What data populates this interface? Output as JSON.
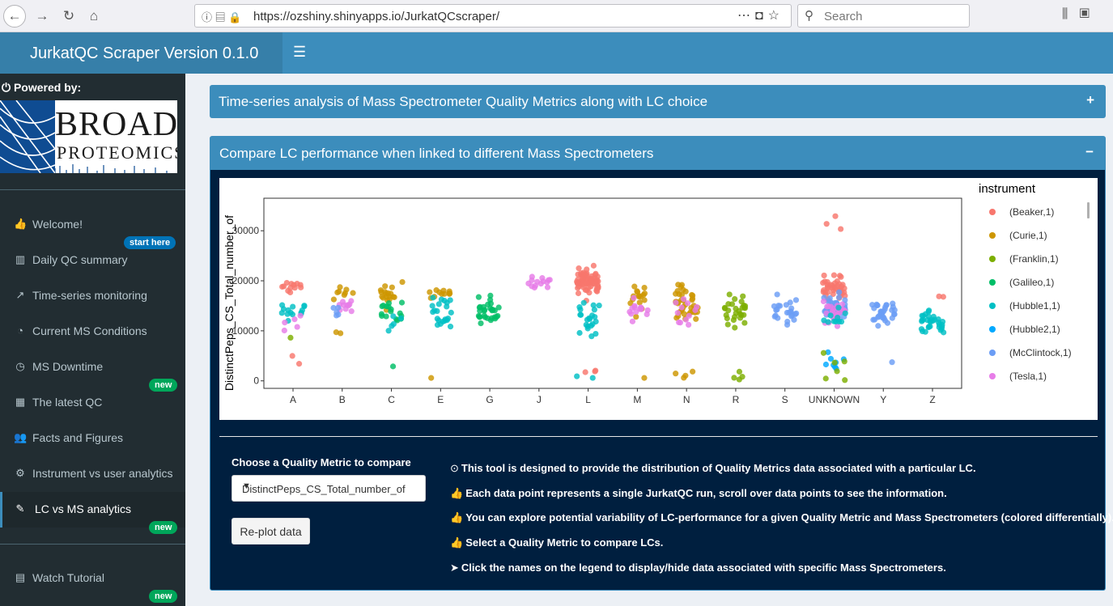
{
  "browser": {
    "url": "https://ozshiny.shinyapps.io/JurkatQCscraper/",
    "search_placeholder": "Search"
  },
  "header": {
    "title": "JurkatQC Scraper Version 0.1.0"
  },
  "sidebar": {
    "powered_by": "Powered by:",
    "logo_text_1": "BROAD",
    "logo_text_2": "PROTEOMICS",
    "items": [
      {
        "label": "Welcome!",
        "icon": "thumbs-up-icon",
        "badge": "start here"
      },
      {
        "label": "Daily QC summary",
        "icon": "bar-chart-icon",
        "badge": ""
      },
      {
        "label": "Time-series monitoring",
        "icon": "line-chart-icon",
        "badge": ""
      },
      {
        "label": "Current MS Conditions",
        "icon": "dashboard-icon",
        "badge": ""
      },
      {
        "label": "MS Downtime",
        "icon": "clock-icon",
        "badge": "new"
      },
      {
        "label": "The latest QC",
        "icon": "table-icon",
        "badge": ""
      },
      {
        "label": "Facts and Figures",
        "icon": "users-icon",
        "badge": ""
      },
      {
        "label": "Instrument vs user analytics",
        "icon": "gears-icon",
        "badge": ""
      },
      {
        "label": "LC vs MS analytics",
        "icon": "eyedropper-icon",
        "badge": "new"
      },
      {
        "label": "Watch Tutorial",
        "icon": "film-icon",
        "badge": "new"
      }
    ]
  },
  "boxes": {
    "collapsed_title": "Time-series analysis of Mass Spectrometer Quality Metrics along with LC choice",
    "collapsed_tool": "+",
    "open_title": "Compare LC performance when linked to different Mass Spectrometers",
    "open_tool": "−"
  },
  "controls": {
    "metric_label": "Choose a Quality Metric to compare",
    "metric_value": "DistinctPeps_CS_Total_number_of",
    "replot_label": "Re-plot data"
  },
  "info": [
    {
      "icon": "circle-dot-icon",
      "glyph": "⊙",
      "text": "This tool is designed to provide the distribution of Quality Metrics data associated with a particular LC."
    },
    {
      "icon": "thumbs-up-icon",
      "glyph": "👍",
      "text": "Each data point represents a single JurkatQC run, scroll over data points to see the information."
    },
    {
      "icon": "thumbs-up-icon",
      "glyph": "👍",
      "text": "You can explore potential variability of LC-performance for a given Quality Metric and Mass Spectrometers (colored differentially)."
    },
    {
      "icon": "thumbs-up-icon",
      "glyph": "👍",
      "text": "Select a Quality Metric to compare LCs."
    },
    {
      "icon": "pointer-icon",
      "glyph": "➤",
      "text": "Click the names on the legend to display/hide data associated with specific Mass Spectrometers."
    }
  ],
  "chart_data": {
    "type": "scatter",
    "title": "",
    "xlabel": "",
    "ylabel": "DistinctPeps_CS_Total_number_of",
    "categories": [
      "A",
      "B",
      "C",
      "E",
      "G",
      "J",
      "L",
      "M",
      "N",
      "R",
      "S",
      "UNKNOWN",
      "Y",
      "Z"
    ],
    "y_tick_labels": [
      "0",
      "10000",
      "20000",
      "30000"
    ],
    "y_ticks": [
      0,
      10000,
      20000,
      30000
    ],
    "ylim": [
      -1500,
      36500
    ],
    "legend_title": "instrument",
    "legend_position": "right",
    "series": [
      {
        "name": "(Beaker,1)",
        "color": "#f8766d"
      },
      {
        "name": "(Curie,1)",
        "color": "#cd9600"
      },
      {
        "name": "(Franklin,1)",
        "color": "#7cae00"
      },
      {
        "name": "(Galileo,1)",
        "color": "#00be67"
      },
      {
        "name": "(Hubble1,1)",
        "color": "#00bfc4"
      },
      {
        "name": "(Hubble2,1)",
        "color": "#00a9ff"
      },
      {
        "name": "(McClintock,1)",
        "color": "#6b9df5"
      },
      {
        "name": "(Tesla,1)",
        "color": "#e77de8"
      }
    ],
    "groups": [
      {
        "category": "A",
        "clusters": [
          {
            "s": 0,
            "mean": 18500,
            "sd": 900,
            "n": 12
          },
          {
            "s": 4,
            "mean": 13800,
            "sd": 1100,
            "n": 14
          },
          {
            "s": 7,
            "mean": 11500,
            "sd": 1200,
            "n": 5
          },
          {
            "s": 2,
            "mean": 8700,
            "sd": 300,
            "n": 1
          },
          {
            "s": 0,
            "mean": 5000,
            "sd": 600,
            "n": 2
          }
        ]
      },
      {
        "category": "B",
        "clusters": [
          {
            "s": 1,
            "mean": 17500,
            "sd": 900,
            "n": 8
          },
          {
            "s": 7,
            "mean": 14700,
            "sd": 800,
            "n": 10
          },
          {
            "s": 6,
            "mean": 14000,
            "sd": 700,
            "n": 5
          },
          {
            "s": 1,
            "mean": 9500,
            "sd": 200,
            "n": 2
          }
        ]
      },
      {
        "category": "C",
        "clusters": [
          {
            "s": 1,
            "mean": 17000,
            "sd": 1200,
            "n": 18
          },
          {
            "s": 3,
            "mean": 14000,
            "sd": 1300,
            "n": 16
          },
          {
            "s": 4,
            "mean": 11500,
            "sd": 1000,
            "n": 5
          },
          {
            "s": 3,
            "mean": 3000,
            "sd": 100,
            "n": 1
          }
        ]
      },
      {
        "category": "E",
        "clusters": [
          {
            "s": 1,
            "mean": 17500,
            "sd": 800,
            "n": 12
          },
          {
            "s": 4,
            "mean": 13000,
            "sd": 2000,
            "n": 22
          },
          {
            "s": 1,
            "mean": 500,
            "sd": 100,
            "n": 1
          }
        ]
      },
      {
        "category": "G",
        "clusters": [
          {
            "s": 3,
            "mean": 14200,
            "sd": 1200,
            "n": 30
          }
        ]
      },
      {
        "category": "J",
        "clusters": [
          {
            "s": 7,
            "mean": 19800,
            "sd": 600,
            "n": 14
          }
        ]
      },
      {
        "category": "L",
        "clusters": [
          {
            "s": 0,
            "mean": 19800,
            "sd": 1300,
            "n": 70
          },
          {
            "s": 4,
            "mean": 13000,
            "sd": 2000,
            "n": 22
          },
          {
            "s": 0,
            "mean": 2000,
            "sd": 300,
            "n": 3
          },
          {
            "s": 4,
            "mean": 700,
            "sd": 300,
            "n": 2
          }
        ]
      },
      {
        "category": "M",
        "clusters": [
          {
            "s": 1,
            "mean": 16000,
            "sd": 1400,
            "n": 16
          },
          {
            "s": 7,
            "mean": 14500,
            "sd": 1000,
            "n": 14
          },
          {
            "s": 1,
            "mean": 500,
            "sd": 100,
            "n": 1
          }
        ]
      },
      {
        "category": "N",
        "clusters": [
          {
            "s": 1,
            "mean": 15500,
            "sd": 2200,
            "n": 40
          },
          {
            "s": 7,
            "mean": 14000,
            "sd": 1500,
            "n": 12
          },
          {
            "s": 1,
            "mean": 1000,
            "sd": 400,
            "n": 4
          }
        ]
      },
      {
        "category": "R",
        "clusters": [
          {
            "s": 2,
            "mean": 14000,
            "sd": 1800,
            "n": 28
          },
          {
            "s": 2,
            "mean": 700,
            "sd": 600,
            "n": 4
          }
        ]
      },
      {
        "category": "S",
        "clusters": [
          {
            "s": 6,
            "mean": 14200,
            "sd": 1300,
            "n": 24
          }
        ]
      },
      {
        "category": "UNKNOWN",
        "clusters": [
          {
            "s": 0,
            "mean": 18500,
            "sd": 1200,
            "n": 40
          },
          {
            "s": 6,
            "mean": 14000,
            "sd": 1500,
            "n": 40
          },
          {
            "s": 7,
            "mean": 13500,
            "sd": 1300,
            "n": 25
          },
          {
            "s": 4,
            "mean": 12000,
            "sd": 1500,
            "n": 10
          },
          {
            "s": 5,
            "mean": 4000,
            "sd": 1300,
            "n": 8
          },
          {
            "s": 2,
            "mean": 1500,
            "sd": 1500,
            "n": 6
          },
          {
            "s": 0,
            "mean": 32000,
            "sd": 2800,
            "n": 3
          }
        ]
      },
      {
        "category": "Y",
        "clusters": [
          {
            "s": 6,
            "mean": 13500,
            "sd": 1200,
            "n": 35
          },
          {
            "s": 6,
            "mean": 3800,
            "sd": 100,
            "n": 1
          }
        ]
      },
      {
        "category": "Z",
        "clusters": [
          {
            "s": 4,
            "mean": 11800,
            "sd": 1200,
            "n": 32
          },
          {
            "s": 0,
            "mean": 16800,
            "sd": 200,
            "n": 2
          }
        ]
      }
    ]
  }
}
